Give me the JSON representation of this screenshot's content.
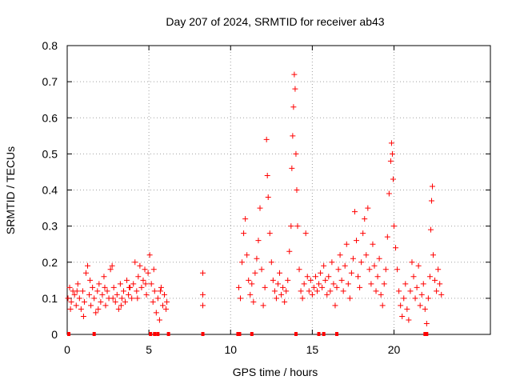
{
  "chart_data": {
    "type": "scatter",
    "title": "Day 207 of 2024, SRMTID for receiver ab43",
    "xlabel": "GPS time / hours",
    "ylabel": "SRMTID / TECUs",
    "xlim": [
      0,
      25.9
    ],
    "ylim": [
      0,
      0.8
    ],
    "x_ticks": [
      0,
      5,
      10,
      15,
      20
    ],
    "x_tick_labels": [
      "0",
      "5",
      "10",
      "15",
      "20"
    ],
    "y_ticks": [
      0,
      0.1,
      0.2,
      0.3,
      0.4,
      0.5,
      0.6,
      0.7,
      0.8
    ],
    "y_tick_labels": [
      "0",
      "0.1",
      "0.2",
      "0.3",
      "0.4",
      "0.5",
      "0.6",
      "0.7",
      "0.8"
    ],
    "grid": true,
    "marker": "+",
    "color": "#ff0000",
    "zero_markers_x": [
      0.1,
      1.65,
      5.1,
      5.35,
      5.55,
      6.2,
      8.3,
      10.45,
      10.55,
      11.3,
      14.0,
      15.4,
      15.7,
      16.5,
      21.9,
      22.0
    ],
    "series": [
      {
        "name": "SRMTID",
        "points": [
          [
            0.05,
            0.1
          ],
          [
            0.15,
            0.13
          ],
          [
            0.25,
            0.09
          ],
          [
            0.35,
            0.12
          ],
          [
            0.45,
            0.11
          ],
          [
            0.55,
            0.08
          ],
          [
            0.65,
            0.14
          ],
          [
            0.75,
            0.1
          ],
          [
            0.85,
            0.07
          ],
          [
            0.95,
            0.12
          ],
          [
            1.05,
            0.09
          ],
          [
            1.15,
            0.17
          ],
          [
            1.25,
            0.19
          ],
          [
            1.35,
            0.11
          ],
          [
            1.45,
            0.08
          ],
          [
            1.55,
            0.13
          ],
          [
            1.65,
            0.1
          ],
          [
            1.75,
            0.06
          ],
          [
            1.85,
            0.12
          ],
          [
            1.95,
            0.14
          ],
          [
            2.05,
            0.09
          ],
          [
            2.15,
            0.11
          ],
          [
            2.25,
            0.16
          ],
          [
            2.35,
            0.08
          ],
          [
            2.45,
            0.12
          ],
          [
            2.55,
            0.1
          ],
          [
            2.65,
            0.18
          ],
          [
            2.75,
            0.19
          ],
          [
            2.85,
            0.13
          ],
          [
            2.95,
            0.09
          ],
          [
            3.05,
            0.11
          ],
          [
            3.15,
            0.07
          ],
          [
            3.25,
            0.14
          ],
          [
            3.35,
            0.1
          ],
          [
            3.45,
            0.12
          ],
          [
            3.55,
            0.09
          ],
          [
            3.65,
            0.15
          ],
          [
            3.75,
            0.11
          ],
          [
            3.85,
            0.13
          ],
          [
            3.95,
            0.1
          ],
          [
            4.05,
            0.14
          ],
          [
            4.15,
            0.2
          ],
          [
            4.25,
            0.12
          ],
          [
            4.35,
            0.16
          ],
          [
            4.45,
            0.19
          ],
          [
            4.55,
            0.13
          ],
          [
            4.65,
            0.15
          ],
          [
            4.75,
            0.18
          ],
          [
            4.85,
            0.11
          ],
          [
            4.95,
            0.17
          ],
          [
            5.05,
            0.22
          ],
          [
            5.15,
            0.14
          ],
          [
            5.25,
            0.09
          ],
          [
            5.35,
            0.12
          ],
          [
            5.45,
            0.06
          ],
          [
            5.55,
            0.1
          ],
          [
            5.65,
            0.04
          ],
          [
            5.75,
            0.13
          ],
          [
            5.85,
            0.08
          ],
          [
            5.95,
            0.11
          ],
          [
            6.05,
            0.07
          ],
          [
            6.1,
            0.09
          ],
          [
            0.2,
            0.07
          ],
          [
            0.6,
            0.12
          ],
          [
            1.0,
            0.05
          ],
          [
            1.4,
            0.15
          ],
          [
            1.9,
            0.07
          ],
          [
            2.3,
            0.13
          ],
          [
            2.8,
            0.1
          ],
          [
            3.3,
            0.08
          ],
          [
            3.8,
            0.13
          ],
          [
            4.3,
            0.1
          ],
          [
            4.8,
            0.14
          ],
          [
            5.3,
            0.18
          ],
          [
            5.7,
            0.12
          ],
          [
            8.3,
            0.17
          ],
          [
            8.3,
            0.11
          ],
          [
            8.3,
            0.08
          ],
          [
            10.5,
            0.13
          ],
          [
            10.6,
            0.1
          ],
          [
            10.7,
            0.2
          ],
          [
            10.8,
            0.28
          ],
          [
            10.9,
            0.32
          ],
          [
            11.0,
            0.22
          ],
          [
            11.1,
            0.15
          ],
          [
            11.2,
            0.11
          ],
          [
            11.3,
            0.14
          ],
          [
            11.4,
            0.09
          ],
          [
            11.5,
            0.17
          ],
          [
            11.6,
            0.21
          ],
          [
            11.7,
            0.26
          ],
          [
            11.8,
            0.35
          ],
          [
            11.9,
            0.18
          ],
          [
            12.0,
            0.08
          ],
          [
            12.1,
            0.13
          ],
          [
            12.2,
            0.54
          ],
          [
            12.25,
            0.44
          ],
          [
            12.3,
            0.38
          ],
          [
            12.4,
            0.28
          ],
          [
            12.5,
            0.2
          ],
          [
            12.6,
            0.15
          ],
          [
            12.7,
            0.12
          ],
          [
            12.8,
            0.1
          ],
          [
            12.9,
            0.14
          ],
          [
            13.0,
            0.17
          ],
          [
            13.1,
            0.11
          ],
          [
            13.2,
            0.13
          ],
          [
            13.3,
            0.09
          ],
          [
            13.4,
            0.12
          ],
          [
            13.5,
            0.15
          ],
          [
            13.6,
            0.23
          ],
          [
            13.7,
            0.3
          ],
          [
            13.75,
            0.46
          ],
          [
            13.8,
            0.55
          ],
          [
            13.85,
            0.63
          ],
          [
            13.9,
            0.72
          ],
          [
            13.95,
            0.68
          ],
          [
            14.0,
            0.5
          ],
          [
            14.05,
            0.4
          ],
          [
            14.1,
            0.3
          ],
          [
            14.2,
            0.18
          ],
          [
            14.3,
            0.12
          ],
          [
            14.4,
            0.1
          ],
          [
            14.5,
            0.14
          ],
          [
            14.6,
            0.28
          ],
          [
            14.7,
            0.16
          ],
          [
            14.8,
            0.12
          ],
          [
            14.9,
            0.15
          ],
          [
            15.0,
            0.11
          ],
          [
            15.1,
            0.13
          ],
          [
            15.2,
            0.16
          ],
          [
            15.3,
            0.12
          ],
          [
            15.4,
            0.14
          ],
          [
            15.5,
            0.17
          ],
          [
            15.6,
            0.13
          ],
          [
            15.7,
            0.19
          ],
          [
            15.8,
            0.15
          ],
          [
            15.9,
            0.11
          ],
          [
            16.0,
            0.16
          ],
          [
            16.1,
            0.12
          ],
          [
            16.2,
            0.2
          ],
          [
            16.3,
            0.14
          ],
          [
            16.4,
            0.08
          ],
          [
            16.5,
            0.13
          ],
          [
            16.6,
            0.18
          ],
          [
            16.7,
            0.22
          ],
          [
            16.8,
            0.15
          ],
          [
            16.9,
            0.12
          ],
          [
            17.0,
            0.19
          ],
          [
            17.1,
            0.25
          ],
          [
            17.2,
            0.14
          ],
          [
            17.3,
            0.1
          ],
          [
            17.4,
            0.17
          ],
          [
            17.5,
            0.21
          ],
          [
            17.6,
            0.34
          ],
          [
            17.7,
            0.26
          ],
          [
            17.8,
            0.16
          ],
          [
            17.9,
            0.13
          ],
          [
            18.0,
            0.2
          ],
          [
            18.1,
            0.28
          ],
          [
            18.2,
            0.32
          ],
          [
            18.3,
            0.22
          ],
          [
            18.4,
            0.35
          ],
          [
            18.5,
            0.18
          ],
          [
            18.6,
            0.14
          ],
          [
            18.7,
            0.25
          ],
          [
            18.8,
            0.19
          ],
          [
            18.9,
            0.12
          ],
          [
            19.0,
            0.16
          ],
          [
            19.1,
            0.21
          ],
          [
            19.2,
            0.11
          ],
          [
            19.3,
            0.08
          ],
          [
            19.4,
            0.14
          ],
          [
            19.5,
            0.18
          ],
          [
            19.6,
            0.27
          ],
          [
            19.7,
            0.39
          ],
          [
            19.8,
            0.48
          ],
          [
            19.85,
            0.53
          ],
          [
            19.9,
            0.5
          ],
          [
            19.95,
            0.43
          ],
          [
            20.0,
            0.3
          ],
          [
            20.1,
            0.24
          ],
          [
            20.2,
            0.18
          ],
          [
            20.3,
            0.12
          ],
          [
            20.4,
            0.08
          ],
          [
            20.5,
            0.05
          ],
          [
            20.6,
            0.1
          ],
          [
            20.7,
            0.14
          ],
          [
            20.8,
            0.07
          ],
          [
            20.9,
            0.04
          ],
          [
            21.0,
            0.12
          ],
          [
            21.1,
            0.2
          ],
          [
            21.2,
            0.16
          ],
          [
            21.3,
            0.1
          ],
          [
            21.4,
            0.13
          ],
          [
            21.5,
            0.19
          ],
          [
            21.6,
            0.08
          ],
          [
            21.7,
            0.11
          ],
          [
            21.8,
            0.14
          ],
          [
            21.9,
            0.07
          ],
          [
            22.0,
            0.03
          ],
          [
            22.1,
            0.1
          ],
          [
            22.2,
            0.16
          ],
          [
            22.25,
            0.29
          ],
          [
            22.3,
            0.37
          ],
          [
            22.35,
            0.41
          ],
          [
            22.4,
            0.22
          ],
          [
            22.5,
            0.15
          ],
          [
            22.6,
            0.12
          ],
          [
            22.7,
            0.18
          ],
          [
            22.8,
            0.14
          ],
          [
            22.9,
            0.11
          ]
        ]
      }
    ]
  }
}
